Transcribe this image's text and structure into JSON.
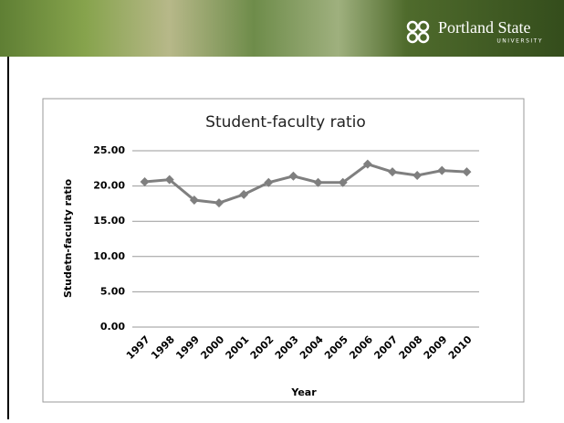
{
  "header": {
    "logo_text": "Portland State",
    "logo_subtext": "UNIVERSITY"
  },
  "chart_data": {
    "type": "line",
    "title": "Student-faculty ratio",
    "x_label": "Year",
    "y_label": "Studetn-faculty ratio",
    "categories": [
      "1997",
      "1998",
      "1999",
      "2000",
      "2001",
      "2002",
      "2003",
      "2004",
      "2005",
      "2006",
      "2007",
      "2008",
      "2009",
      "2010"
    ],
    "series": [
      {
        "name": "Student-faculty ratio",
        "color": "#7f7f7f",
        "values": [
          20.6,
          20.9,
          18.0,
          17.6,
          18.8,
          20.5,
          21.4,
          20.5,
          20.5,
          23.1,
          22.0,
          21.5,
          22.2,
          22.0
        ]
      }
    ],
    "ylim": [
      0,
      25
    ],
    "yticks": [
      {
        "value": 0,
        "label": "0.00"
      },
      {
        "value": 5,
        "label": "5.00"
      },
      {
        "value": 10,
        "label": "10.00"
      },
      {
        "value": 15,
        "label": "15.00"
      },
      {
        "value": 20,
        "label": "20.00"
      },
      {
        "value": 25,
        "label": "25.00"
      }
    ],
    "grid": true
  }
}
